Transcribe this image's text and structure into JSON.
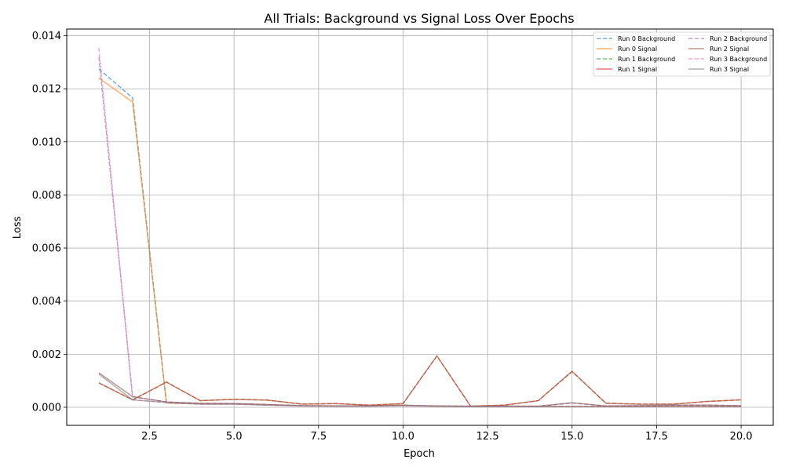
{
  "chart_data": {
    "type": "line",
    "title": "All Trials: Background vs Signal Loss Over Epochs",
    "xlabel": "Epoch",
    "ylabel": "Loss",
    "xlim": [
      0.05,
      20.95
    ],
    "ylim": [
      -0.00068,
      0.01425
    ],
    "xticks": [
      2.5,
      5.0,
      7.5,
      10.0,
      12.5,
      15.0,
      17.5,
      20.0
    ],
    "xtick_labels": [
      "2.5",
      "5.0",
      "7.5",
      "10.0",
      "12.5",
      "15.0",
      "17.5",
      "20.0"
    ],
    "yticks": [
      0.0,
      0.002,
      0.004,
      0.006,
      0.008,
      0.01,
      0.012,
      0.014
    ],
    "ytick_labels": [
      "0.000",
      "0.002",
      "0.004",
      "0.006",
      "0.008",
      "0.010",
      "0.012",
      "0.014"
    ],
    "grid": true,
    "legend_position": "upper-right",
    "legend_columns": 2,
    "x": [
      1,
      2,
      3,
      4,
      5,
      6,
      7,
      8,
      9,
      10,
      11,
      12,
      13,
      14,
      15,
      16,
      17,
      18,
      19,
      20
    ],
    "series": [
      {
        "name": "Run 0 Background",
        "color": "#1f77b4",
        "dashed": true,
        "values": [
          0.01275,
          0.01165,
          0.00016,
          0.00013,
          0.00013,
          0.0001,
          6e-05,
          5e-05,
          5e-05,
          8e-05,
          4e-05,
          4e-05,
          4e-05,
          4e-05,
          3e-05,
          3e-05,
          3e-05,
          3e-05,
          3e-05,
          3e-05
        ]
      },
      {
        "name": "Run 0 Signal",
        "color": "#ff7f0e",
        "dashed": false,
        "values": [
          0.0124,
          0.0115,
          0.00016,
          0.00013,
          0.00013,
          0.0001,
          6e-05,
          5e-05,
          5e-05,
          8e-05,
          4e-05,
          4e-05,
          4e-05,
          4e-05,
          3e-05,
          3e-05,
          3e-05,
          3e-05,
          3e-05,
          3e-05
        ]
      },
      {
        "name": "Run 1 Background",
        "color": "#2ca02c",
        "dashed": true,
        "values": [
          0.00092,
          0.00028,
          0.00095,
          0.00025,
          0.0003,
          0.00027,
          0.00012,
          0.00014,
          8e-05,
          0.00014,
          0.00193,
          4e-05,
          8e-05,
          0.00025,
          0.00134,
          0.00015,
          0.00012,
          0.00012,
          0.00022,
          0.00028
        ]
      },
      {
        "name": "Run 1 Signal",
        "color": "#d62728",
        "dashed": false,
        "values": [
          0.00092,
          0.00028,
          0.00095,
          0.00025,
          0.0003,
          0.00027,
          0.00012,
          0.00014,
          8e-05,
          0.00014,
          0.00194,
          4e-05,
          8e-05,
          0.00025,
          0.00136,
          0.00015,
          0.00012,
          0.00012,
          0.00022,
          0.00028
        ]
      },
      {
        "name": "Run 2 Background",
        "color": "#9467bd",
        "dashed": true,
        "values": [
          0.0132,
          0.0004,
          0.0002,
          0.00015,
          0.00014,
          0.0001,
          6e-05,
          5e-05,
          5e-05,
          7e-05,
          5e-05,
          4e-05,
          4e-05,
          4e-05,
          0.00016,
          5e-05,
          6e-05,
          8e-05,
          8e-05,
          6e-05
        ]
      },
      {
        "name": "Run 2 Signal",
        "color": "#8c564b",
        "dashed": false,
        "values": [
          0.0013,
          0.0004,
          0.0002,
          0.00015,
          0.00014,
          0.0001,
          6e-05,
          5e-05,
          5e-05,
          7e-05,
          5e-05,
          4e-05,
          4e-05,
          4e-05,
          0.00017,
          5e-05,
          6e-05,
          8e-05,
          8e-05,
          6e-05
        ]
      },
      {
        "name": "Run 3 Background",
        "color": "#e377c2",
        "dashed": true,
        "values": [
          0.01355,
          0.00028,
          0.00018,
          0.00012,
          0.00012,
          8e-05,
          5e-05,
          4e-05,
          4e-05,
          6e-05,
          4e-05,
          3e-05,
          3e-05,
          3e-05,
          3e-05,
          3e-05,
          3e-05,
          3e-05,
          3e-05,
          3e-05
        ]
      },
      {
        "name": "Run 3 Signal",
        "color": "#7f7f7f",
        "dashed": false,
        "values": [
          0.00125,
          0.00028,
          0.00018,
          0.00012,
          0.00012,
          8e-05,
          5e-05,
          4e-05,
          4e-05,
          6e-05,
          4e-05,
          3e-05,
          3e-05,
          3e-05,
          3e-05,
          3e-05,
          3e-05,
          3e-05,
          3e-05,
          3e-05
        ]
      }
    ]
  }
}
